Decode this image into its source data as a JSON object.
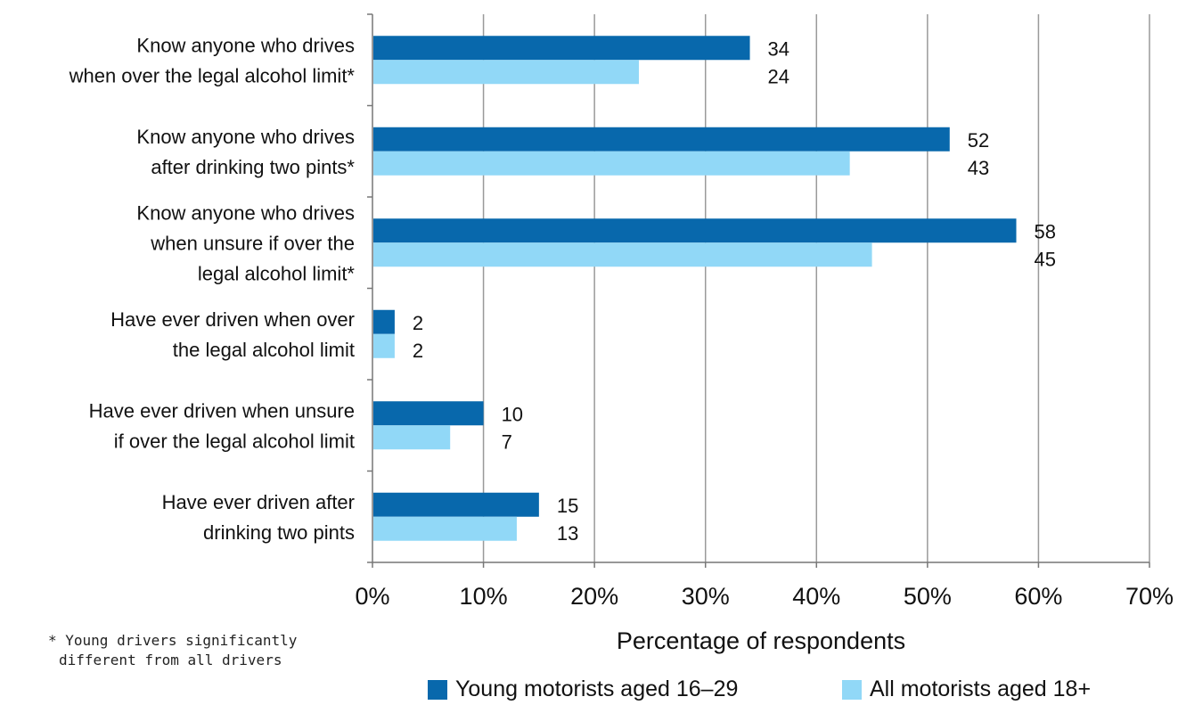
{
  "chart_data": {
    "type": "bar",
    "orientation": "horizontal",
    "categories": [
      [
        "Know anyone who drives",
        "when over the legal alcohol limit*"
      ],
      [
        "Know anyone who drives",
        "after drinking two pints*"
      ],
      [
        "Know anyone who drives",
        "when unsure if over the",
        "legal alcohol limit*"
      ],
      [
        "Have ever driven when over",
        "the legal alcohol limit"
      ],
      [
        "Have ever driven when unsure",
        "if over the legal alcohol limit"
      ],
      [
        "Have ever driven after",
        "drinking two pints"
      ]
    ],
    "series": [
      {
        "name": "Young motorists aged 16–29",
        "values": [
          34,
          52,
          58,
          2,
          10,
          15
        ],
        "color": "#0868ac"
      },
      {
        "name": "All motorists aged 18+",
        "values": [
          24,
          43,
          45,
          2,
          7,
          13
        ],
        "color": "#91d8f7"
      }
    ],
    "xlabel": "Percentage of respondents",
    "xticks": [
      "0%",
      "10%",
      "20%",
      "30%",
      "40%",
      "50%",
      "60%",
      "70%"
    ],
    "xlim": [
      0,
      70
    ],
    "grid": true,
    "legend_position": "bottom"
  },
  "footnote": {
    "line1": "* Young drivers significantly",
    "line2": "different from all drivers"
  },
  "legend": {
    "young": "Young motorists aged 16–29",
    "all": "All motorists aged 18+"
  }
}
